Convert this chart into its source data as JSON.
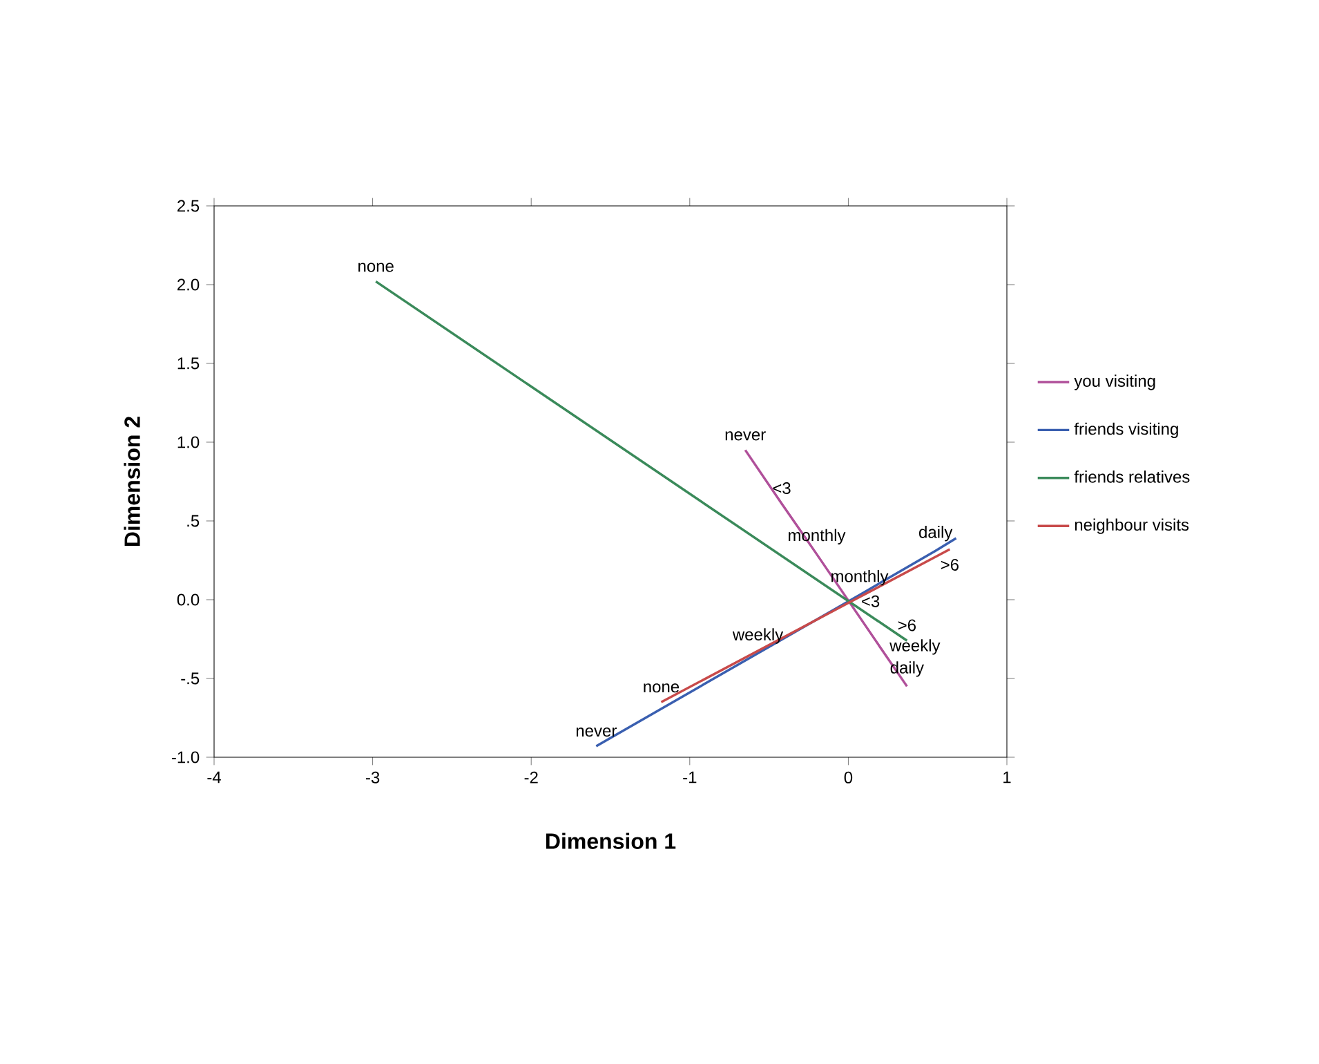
{
  "chart_data": {
    "type": "line",
    "xlabel": "Dimension 1",
    "ylabel": "Dimension 2",
    "xlim": [
      -4,
      1
    ],
    "xticks": [
      -4,
      -3,
      -2,
      -1,
      0,
      1
    ],
    "ylim": [
      -1.0,
      2.5
    ],
    "yticks": [
      {
        "value": -1.0,
        "label": "-1.0"
      },
      {
        "value": -0.5,
        "label": "-.5"
      },
      {
        "value": 0.0,
        "label": "0.0"
      },
      {
        "value": 0.5,
        "label": ".5"
      },
      {
        "value": 1.0,
        "label": "1.0"
      },
      {
        "value": 1.5,
        "label": "1.5"
      },
      {
        "value": 2.0,
        "label": "2.0"
      },
      {
        "value": 2.5,
        "label": "2.5"
      }
    ],
    "legend": "right",
    "series": [
      {
        "name": "you visiting",
        "color": "#b0509a",
        "x": [
          -0.65,
          -0.42,
          -0.2,
          0.2,
          0.37
        ],
        "values": [
          0.95,
          0.61,
          0.29,
          -0.3,
          -0.55
        ]
      },
      {
        "name": "friends visiting",
        "color": "#3a5fb0",
        "x": [
          -1.59,
          -0.57,
          0.07,
          0.55,
          0.68
        ],
        "values": [
          -0.93,
          -0.34,
          0.03,
          0.31,
          0.39
        ]
      },
      {
        "name": "friends relatives",
        "color": "#3a8a5a",
        "x": [
          -2.98,
          0.37
        ],
        "values": [
          2.02,
          -0.26
        ]
      },
      {
        "name": "neighbour visits",
        "color": "#c84a4a",
        "x": [
          -1.18,
          0.02,
          0.64
        ],
        "values": [
          -0.65,
          -0.01,
          0.32
        ]
      }
    ],
    "annotations": [
      {
        "text": "none",
        "x": -2.98,
        "y": 2.02
      },
      {
        "text": "never",
        "x": -0.65,
        "y": 0.95
      },
      {
        "text": "<3",
        "x": -0.42,
        "y": 0.61
      },
      {
        "text": "monthly",
        "x": -0.2,
        "y": 0.29
      },
      {
        "text": "daily",
        "x": 0.55,
        "y": 0.31
      },
      {
        "text": ">6",
        "x": 0.64,
        "y": 0.32
      },
      {
        "text": "monthly",
        "x": 0.07,
        "y": 0.03
      },
      {
        "text": "<3",
        "x": 0.02,
        "y": -0.01
      },
      {
        "text": "weekly",
        "x": -0.57,
        "y": -0.34
      },
      {
        "text": ">6",
        "x": 0.37,
        "y": -0.26
      },
      {
        "text": "weekly",
        "x": 0.2,
        "y": -0.3
      },
      {
        "text": "none",
        "x": -1.18,
        "y": -0.65
      },
      {
        "text": "daily",
        "x": 0.37,
        "y": -0.55
      },
      {
        "text": "never",
        "x": -1.59,
        "y": -0.93
      }
    ]
  }
}
